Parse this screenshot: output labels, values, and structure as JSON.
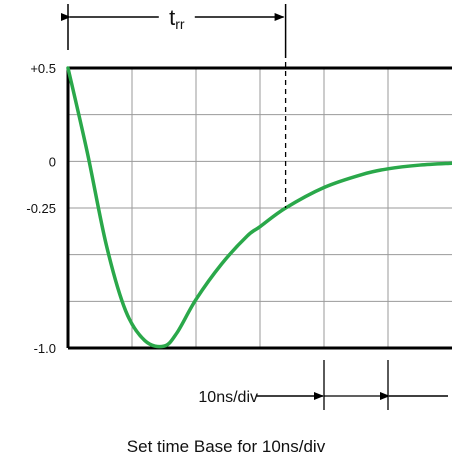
{
  "chart_data": {
    "type": "line",
    "title": "",
    "xlabel": "",
    "ylabel": "",
    "y_tick_labels": [
      {
        "value": 0.5,
        "text": "+0.5"
      },
      {
        "value": 0,
        "text": "0"
      },
      {
        "value": -0.25,
        "text": "-0.25"
      },
      {
        "value": -1.0,
        "text": "-1.0"
      }
    ],
    "x_divisions": 6,
    "y_divisions": 6,
    "xlim": [
      0,
      6
    ],
    "ylim": [
      -1.0,
      0.5
    ],
    "grid": true,
    "series": [
      {
        "x": [
          0,
          0.3,
          0.6,
          0.9,
          1.2,
          1.5,
          1.7,
          2.0,
          2.4,
          2.8,
          3.0,
          3.4,
          4.0,
          4.6,
          5.0,
          5.5,
          6.0
        ],
        "y": [
          0.5,
          0.05,
          -0.45,
          -0.8,
          -0.96,
          -0.99,
          -0.92,
          -0.74,
          -0.55,
          -0.4,
          -0.35,
          -0.25,
          -0.14,
          -0.07,
          -0.04,
          -0.02,
          -0.01
        ],
        "color": "#2aa84a"
      }
    ],
    "annotations": {
      "trr_label_main": "t",
      "trr_label_sub": "rr",
      "trr_end_x": 3.4,
      "timebase_label": "10ns/div",
      "timebase_div_start": 4,
      "timebase_div_end": 5
    }
  },
  "caption": "Set time Base for 10ns/div"
}
